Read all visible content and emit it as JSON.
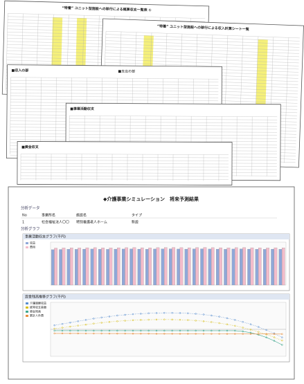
{
  "sheets": [
    {
      "title": "“特養” ユニット型施設への移行による概算収支一覧表 ①"
    },
    {
      "title": "“特養” ユニット型施設への移行による収入計算シート一覧"
    },
    {
      "title": "■収入の部",
      "subtitle": "■支出の部"
    },
    {
      "title": "■事業活動収支"
    },
    {
      "title": "■資金収支"
    }
  ],
  "front": {
    "title": "◆介護事業シミュレーション　将来予測結果",
    "section_data": "分析データ",
    "table": {
      "header": [
        "No",
        "事業所名",
        "施設名",
        "タイプ"
      ],
      "rows": [
        [
          "1",
          "社会福祉法人〇〇",
          "特別養護老人ホーム",
          "新設"
        ]
      ]
    },
    "section_graph": "分析グラフ",
    "bar_chart": {
      "type": "bar",
      "title": "事業活動収支グラフ(千円)",
      "ylim": [
        0,
        400000
      ],
      "series": [
        {
          "name": "収益",
          "color": "#8fa8d8",
          "values": [
            330000,
            332000,
            334000,
            333000,
            335000,
            336000,
            334000,
            333000,
            335000,
            336000,
            337000,
            335000,
            334000,
            336000,
            337000,
            338000,
            336000,
            335000,
            337000,
            338000,
            336000,
            335000,
            334000,
            336000,
            337000,
            335000,
            334000,
            333000,
            335000,
            334000
          ]
        },
        {
          "name": "費用",
          "color": "#f3bccb",
          "values": [
            345000,
            346000,
            347000,
            346000,
            348000,
            349000,
            347000,
            346000,
            348000,
            349000,
            350000,
            348000,
            347000,
            349000,
            350000,
            351000,
            349000,
            348000,
            350000,
            351000,
            349000,
            348000,
            347000,
            349000,
            350000,
            348000,
            347000,
            346000,
            348000,
            347000
          ]
        }
      ]
    },
    "line_chart": {
      "type": "line",
      "title": "資金残高推移グラフ(千円)",
      "ylim": [
        -400000,
        400000
      ],
      "series": [
        {
          "name": "介護報酬収益",
          "color": "#5a8fd0",
          "values": [
            60000,
            80000,
            100000,
            120000,
            140000,
            160000,
            175000,
            190000,
            205000,
            215000,
            225000,
            232000,
            238000,
            242000,
            244000,
            244000,
            242000,
            238000,
            230000,
            220000,
            205000,
            188000,
            165000,
            140000,
            110000,
            75000,
            35000,
            -10000,
            -60000,
            -120000
          ]
        },
        {
          "name": "経常収支差額",
          "color": "#d8c020",
          "values": [
            10000,
            25000,
            40000,
            55000,
            70000,
            85000,
            98000,
            110000,
            120000,
            128000,
            135000,
            140000,
            143000,
            145000,
            146000,
            145000,
            142000,
            137000,
            130000,
            120000,
            108000,
            92000,
            74000,
            52000,
            26000,
            -4000,
            -38000,
            -76000,
            -118000,
            -165000
          ]
        },
        {
          "name": "資金残高",
          "color": "#40a890",
          "values": [
            -20000,
            -20000,
            -20000,
            -20000,
            -20000,
            -20000,
            -20000,
            -20000,
            -20000,
            -20000,
            -20000,
            -20000,
            -20000,
            -20000,
            -20000,
            -20000,
            -20000,
            -20000,
            -20000,
            -20000,
            -20000,
            -20000,
            -20000,
            -20000,
            -30000,
            -50000,
            -80000,
            -120000,
            -170000,
            -230000
          ]
        },
        {
          "name": "累計人件費",
          "color": "#e89040",
          "values": [
            -60000,
            -60000,
            -61000,
            -61000,
            -62000,
            -62000,
            -62000,
            -63000,
            -63000,
            -63000,
            -64000,
            -64000,
            -64000,
            -65000,
            -65000,
            -65000,
            -66000,
            -66000,
            -66000,
            -67000,
            -67000,
            -67000,
            -68000,
            -68000,
            -68000,
            -69000,
            -69000,
            -69000,
            -70000,
            -70000
          ]
        }
      ]
    }
  }
}
